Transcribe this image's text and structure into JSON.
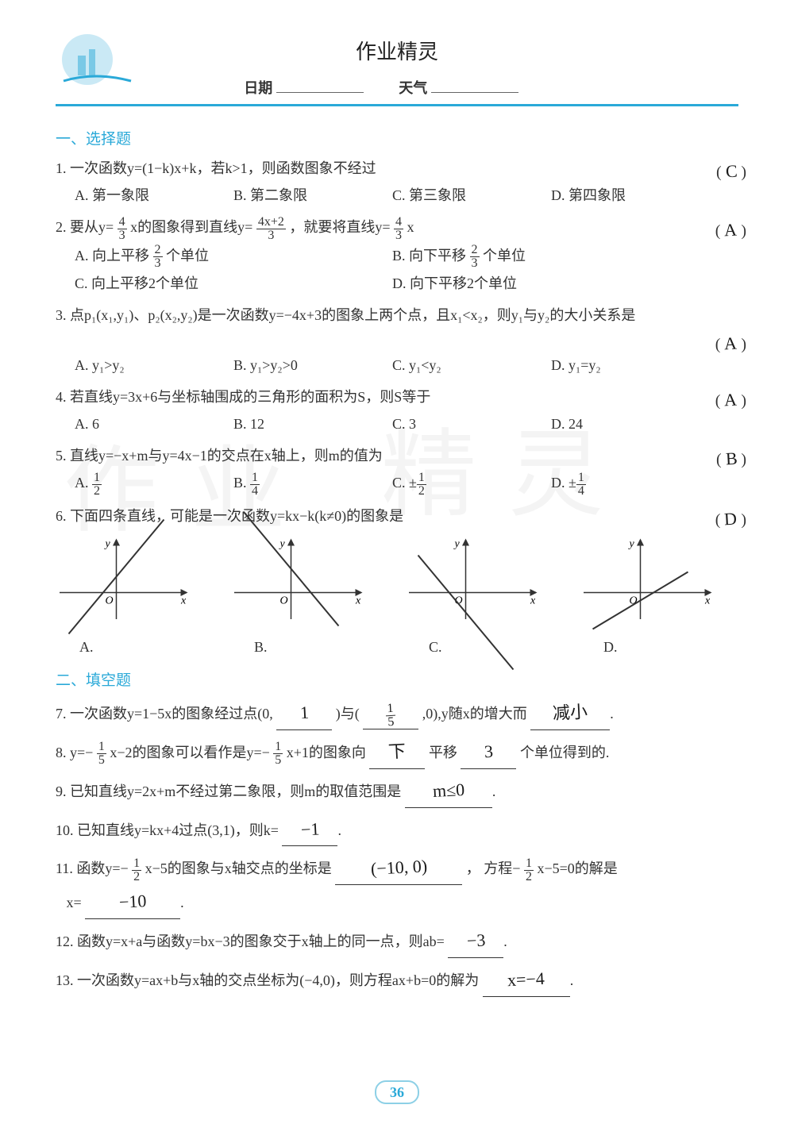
{
  "header": {
    "title": "作业精灵",
    "date_label": "日期",
    "weather_label": "天气"
  },
  "section1_title": "一、选择题",
  "section2_title": "二、填空题",
  "q1": {
    "text": "1. 一次函数y=(1−k)x+k，若k>1，则函数图象不经过",
    "opts": [
      "A. 第一象限",
      "B. 第二象限",
      "C. 第三象限",
      "D. 第四象限"
    ],
    "answer": "C"
  },
  "q2": {
    "prefix": "2. 要从y=",
    "mid1": "x的图象得到直线y=",
    "mid2": "，就要将直线y=",
    "suffix": "x",
    "opts": {
      "A_pre": "A. 向上平移",
      "A_suf": "个单位",
      "B_pre": "B. 向下平移",
      "B_suf": "个单位",
      "C": "C. 向上平移2个单位",
      "D": "D. 向下平移2个单位"
    },
    "answer": "A"
  },
  "q3": {
    "text": "3. 点p₁(x₁,y₁)、p₂(x₂,y₂)是一次函数y=−4x+3的图象上两个点，且x₁<x₂，则y₁与y₂的大小关系是",
    "opts": [
      "A. y₁>y₂",
      "B. y₁>y₂>0",
      "C. y₁<y₂",
      "D. y₁=y₂"
    ],
    "answer": "A"
  },
  "q4": {
    "text": "4. 若直线y=3x+6与坐标轴围成的三角形的面积为S，则S等于",
    "opts": [
      "A. 6",
      "B. 12",
      "C. 3",
      "D. 24"
    ],
    "answer": "A"
  },
  "q5": {
    "text": "5. 直线y=−x+m与y=4x−1的交点在x轴上，则m的值为",
    "opts_pre": [
      "A. ",
      "B. ",
      "C. ±",
      "D. ±"
    ],
    "answer": "B"
  },
  "q6": {
    "text": "6. 下面四条直线，可能是一次函数y=kx−k(k≠0)的图象是",
    "labels": [
      "A.",
      "B.",
      "C.",
      "D."
    ],
    "answer": "D",
    "graphs": {
      "axis_color": "#333333",
      "line_color": "#333333",
      "width": 170,
      "height": 110,
      "slopes": [
        1.2,
        -1.2,
        -1.2,
        0.6
      ],
      "intercepts": [
        20,
        30,
        -25,
        -10
      ]
    }
  },
  "q7": {
    "pre": "7. 一次函数y=1−5x的图象经过点(0,",
    "mid1": ")与(",
    "mid2": ",0),y随x的增大而",
    "ans1": "1",
    "ans2_num": "1",
    "ans2_den": "5",
    "ans3": "减小"
  },
  "q8": {
    "pre": "8. y=−",
    "mid1": "x−2的图象可以看作是y=−",
    "mid2": "x+1的图象向",
    "mid3": "平移",
    "suf": "个单位得到的.",
    "ans1": "下",
    "ans2": "3"
  },
  "q9": {
    "text": "9. 已知直线y=2x+m不经过第二象限，则m的取值范围是",
    "ans": "m≤0"
  },
  "q10": {
    "text": "10. 已知直线y=kx+4过点(3,1)，则k=",
    "ans": "−1"
  },
  "q11": {
    "pre": "11. 函数y=−",
    "mid1": "x−5的图象与x轴交点的坐标是",
    "mid2": "， 方程−",
    "mid3": "x−5=0的解是",
    "line2_pre": "x=",
    "ans1": "(−10, 0)",
    "ans2": "−10"
  },
  "q12": {
    "text": "12. 函数y=x+a与函数y=bx−3的图象交于x轴上的同一点，则ab=",
    "ans": "−3"
  },
  "q13": {
    "text": "13. 一次函数y=ax+b与x轴的交点坐标为(−4,0)，则方程ax+b=0的解为",
    "ans": "x=−4"
  },
  "page_number": "36",
  "colors": {
    "accent": "#2aa9d8",
    "text": "#333333",
    "bg": "#ffffff"
  }
}
